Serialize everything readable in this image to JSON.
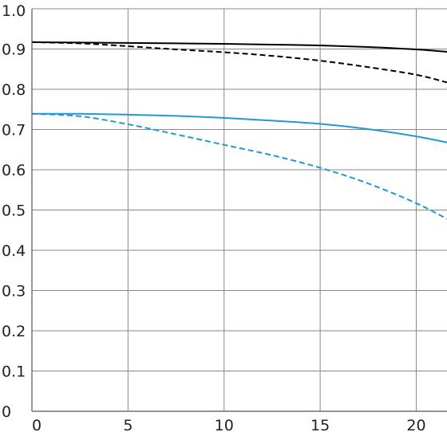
{
  "chart_data": {
    "type": "line",
    "title": "",
    "xlabel": "",
    "ylabel": "",
    "xlim": [
      0,
      21.6
    ],
    "ylim": [
      0,
      1.0
    ],
    "grid": true,
    "x_ticks": [
      0,
      5,
      10,
      15,
      20
    ],
    "x_tick_labels": [
      "0",
      "5",
      "10",
      "15",
      "20"
    ],
    "y_ticks": [
      0,
      0.1,
      0.2,
      0.3,
      0.4,
      0.5,
      0.6,
      0.7,
      0.8,
      0.9,
      1.0
    ],
    "y_tick_labels": [
      "0",
      "0.1",
      "0.2",
      "0.3",
      "0.4",
      "0.5",
      "0.6",
      "0.7",
      "0.8",
      "0.9",
      "1.0"
    ],
    "series": [
      {
        "color": "#000000",
        "style": "solid",
        "x": [
          0,
          2.5,
          5,
          7.5,
          10,
          12.5,
          15,
          17.5,
          20,
          21.6
        ],
        "values": [
          0.917,
          0.916,
          0.915,
          0.914,
          0.913,
          0.911,
          0.909,
          0.905,
          0.899,
          0.893
        ]
      },
      {
        "color": "#000000",
        "style": "dashed",
        "x": [
          0,
          2.5,
          5,
          7.5,
          10,
          12.5,
          15,
          17.5,
          20,
          21.6
        ],
        "values": [
          0.917,
          0.914,
          0.907,
          0.899,
          0.892,
          0.883,
          0.871,
          0.855,
          0.836,
          0.817
        ]
      },
      {
        "color": "#1e9ad6",
        "style": "solid",
        "x": [
          0,
          2.5,
          5,
          7.5,
          10,
          12.5,
          15,
          17.5,
          20,
          21.6
        ],
        "values": [
          0.739,
          0.739,
          0.737,
          0.734,
          0.729,
          0.722,
          0.714,
          0.701,
          0.683,
          0.668
        ]
      },
      {
        "color": "#1e9ad6",
        "style": "dashed",
        "x": [
          0,
          2.5,
          5,
          7.5,
          10,
          12.5,
          15,
          17.5,
          20,
          21.6
        ],
        "values": [
          0.739,
          0.733,
          0.713,
          0.688,
          0.662,
          0.636,
          0.605,
          0.566,
          0.517,
          0.478
        ]
      }
    ]
  }
}
